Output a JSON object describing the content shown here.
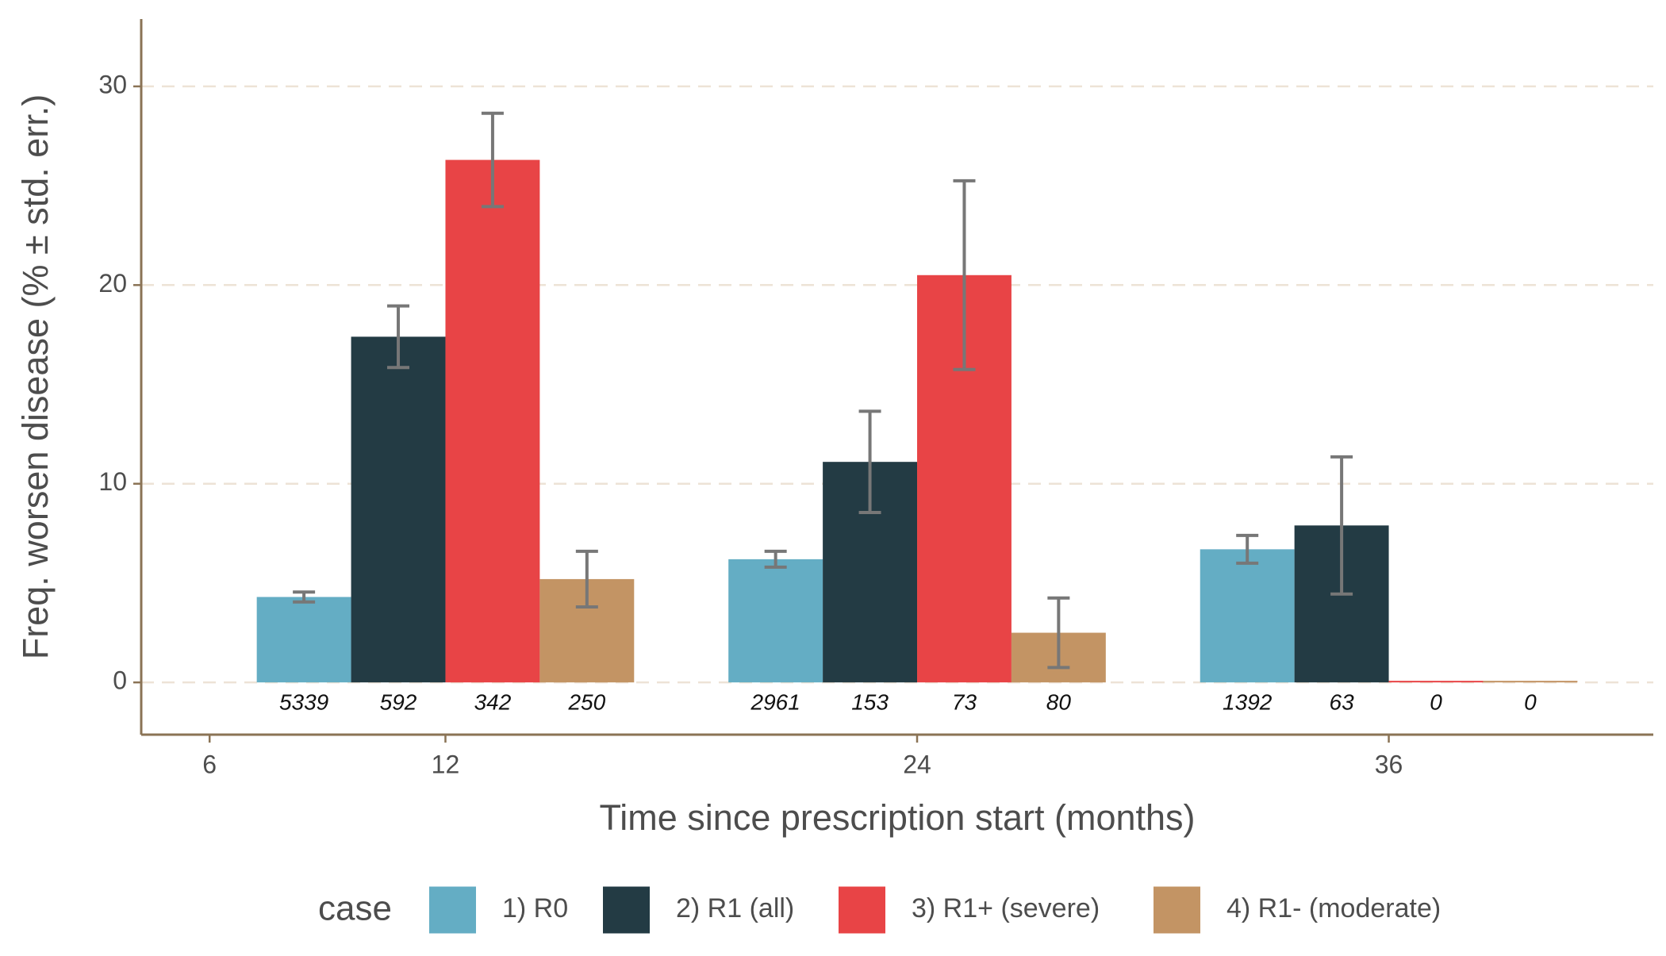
{
  "chart_data": {
    "type": "bar",
    "x_label": "Time since prescription start (months)",
    "y_label": "Freq. worsen disease (% ± std. err.)",
    "legend_title": "case",
    "legend_position": "bottom",
    "x": [
      12,
      24,
      36
    ],
    "xlim": [
      4.26,
      42.73
    ],
    "xticks": [
      6,
      12,
      24,
      36
    ],
    "ylim": [
      -2.63,
      33.39
    ],
    "yticks": [
      0,
      10,
      20,
      30
    ],
    "grid": true,
    "series": [
      {
        "name": "1) R0",
        "color": "#64adc4",
        "values": [
          4.3,
          6.2,
          6.7
        ],
        "errors": [
          0.25,
          0.4,
          0.7
        ],
        "n": [
          5339,
          2961,
          1392
        ]
      },
      {
        "name": "2) R1 (all)",
        "color": "#233b44",
        "values": [
          17.4,
          11.1,
          7.9
        ],
        "errors": [
          1.55,
          2.55,
          3.45
        ],
        "n": [
          592,
          153,
          63
        ]
      },
      {
        "name": "3) R1+ (severe)",
        "color": "#e84446",
        "values": [
          26.3,
          20.5,
          0
        ],
        "errors": [
          2.35,
          4.75,
          null
        ],
        "n": [
          342,
          73,
          0
        ]
      },
      {
        "name": "4) R1- (moderate)",
        "color": "#c39464",
        "values": [
          5.2,
          2.5,
          0
        ],
        "errors": [
          1.4,
          1.75,
          null
        ],
        "n": [
          250,
          80,
          0
        ]
      }
    ]
  }
}
